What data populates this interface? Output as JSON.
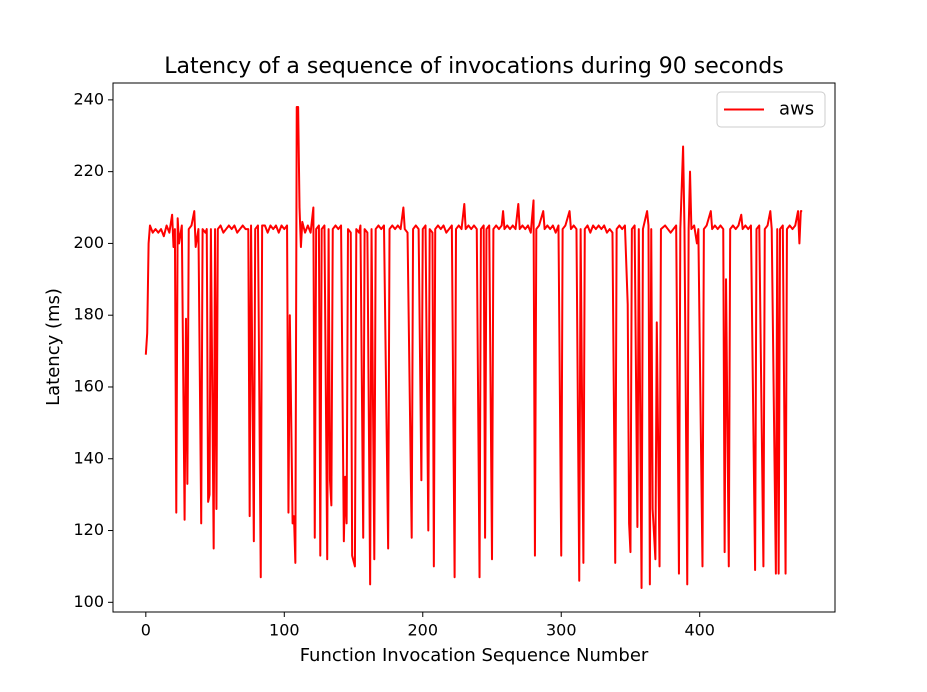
{
  "chart_data": {
    "type": "line",
    "title": "Latency of a sequence of invocations during 90 seconds",
    "xlabel": "Function Invocation Sequence Number",
    "ylabel": "Latency (ms)",
    "xlim": [
      -23.7,
      497.7
    ],
    "xticks": [
      0,
      100,
      200,
      300,
      400
    ],
    "ylim": [
      97.3,
      244.7
    ],
    "yticks": [
      100,
      120,
      140,
      160,
      180,
      200,
      220,
      240
    ],
    "grid": false,
    "legend": "upper right",
    "x": [
      0,
      1,
      2,
      3,
      5,
      7,
      9,
      11,
      13,
      15,
      17,
      19,
      20,
      21,
      22,
      23,
      24,
      26,
      28,
      29,
      30,
      31,
      33,
      35,
      36,
      38,
      40,
      41,
      43,
      44,
      45,
      46,
      47,
      49,
      50,
      51,
      52,
      54,
      56,
      58,
      60,
      62,
      64,
      66,
      68,
      70,
      72,
      74,
      75,
      76,
      78,
      79,
      81,
      83,
      84,
      86,
      88,
      90,
      92,
      94,
      96,
      98,
      100,
      102,
      103,
      104,
      106,
      107,
      108,
      109,
      110,
      111,
      112,
      113,
      115,
      117,
      119,
      121,
      122,
      123,
      125,
      126,
      127,
      129,
      131,
      132,
      133,
      134,
      135,
      137,
      139,
      141,
      143,
      144,
      145,
      146,
      148,
      149,
      151,
      152,
      154,
      155,
      157,
      158,
      160,
      162,
      163,
      165,
      166,
      168,
      170,
      172,
      175,
      176,
      178,
      180,
      182,
      184,
      186,
      187,
      189,
      192,
      193,
      195,
      197,
      199,
      200,
      202,
      204,
      205,
      207,
      208,
      209,
      211,
      213,
      215,
      217,
      219,
      221,
      223,
      224,
      226,
      228,
      230,
      231,
      233,
      235,
      237,
      239,
      241,
      242,
      244,
      245,
      246,
      248,
      250,
      251,
      253,
      255,
      257,
      258,
      259,
      261,
      263,
      265,
      267,
      269,
      270,
      272,
      274,
      276,
      278,
      280,
      281,
      282,
      284,
      287,
      288,
      290,
      292,
      294,
      296,
      298,
      300,
      301,
      303,
      306,
      307,
      309,
      311,
      313,
      314,
      316,
      317,
      319,
      321,
      323,
      325,
      327,
      329,
      331,
      333,
      335,
      337,
      339,
      340,
      342,
      344,
      346,
      348,
      349,
      350,
      351,
      353,
      355,
      356,
      358,
      359,
      362,
      363,
      364,
      365,
      366,
      368,
      369,
      371,
      372,
      375,
      377,
      379,
      381,
      383,
      385,
      386,
      388,
      389,
      391,
      392,
      393,
      394,
      396,
      398,
      399,
      402,
      403,
      405,
      408,
      409,
      411,
      413,
      415,
      417,
      418,
      419,
      421,
      422,
      424,
      426,
      428,
      430,
      431,
      433,
      435,
      437,
      440,
      441,
      443,
      446,
      447,
      449,
      451,
      452,
      455,
      456,
      457,
      458,
      460,
      462,
      463,
      465,
      467,
      469,
      471,
      472,
      473,
      474
    ],
    "series": [
      {
        "name": "aws",
        "color": "#ff0000",
        "values": [
          169,
          175,
          200,
          205,
          203,
          204,
          203,
          204,
          202,
          205,
          203,
          208,
          199,
          204,
          125,
          207,
          200,
          205,
          123,
          179,
          133,
          204,
          205,
          209,
          199,
          204,
          122,
          204,
          203,
          204,
          128,
          130,
          204,
          115,
          204,
          126,
          204,
          205,
          203,
          204,
          205,
          204,
          205,
          203,
          204,
          205,
          204,
          204,
          124,
          205,
          117,
          204,
          205,
          107,
          205,
          205,
          203,
          205,
          204,
          205,
          203,
          205,
          204,
          205,
          125,
          180,
          122,
          124,
          111,
          238,
          238,
          210,
          199,
          206,
          203,
          205,
          203,
          210,
          118,
          204,
          205,
          113,
          204,
          205,
          112,
          204,
          134,
          127,
          204,
          205,
          204,
          205,
          117,
          135,
          122,
          204,
          203,
          113,
          110,
          204,
          203,
          205,
          118,
          204,
          203,
          105,
          204,
          112,
          204,
          205,
          204,
          205,
          115,
          204,
          205,
          204,
          205,
          204,
          210,
          204,
          203,
          118,
          204,
          205,
          204,
          134,
          204,
          205,
          120,
          204,
          203,
          110,
          204,
          205,
          204,
          205,
          203,
          204,
          205,
          107,
          204,
          205,
          204,
          211,
          204,
          205,
          204,
          205,
          204,
          107,
          204,
          205,
          118,
          204,
          205,
          112,
          204,
          205,
          204,
          205,
          209,
          204,
          205,
          204,
          205,
          204,
          211,
          204,
          205,
          204,
          205,
          203,
          212,
          113,
          204,
          205,
          209,
          204,
          205,
          204,
          205,
          203,
          205,
          113,
          204,
          205,
          209,
          204,
          205,
          204,
          106,
          204,
          111,
          204,
          205,
          203,
          205,
          204,
          205,
          204,
          205,
          203,
          204,
          203,
          111,
          204,
          205,
          204,
          205,
          183,
          122,
          114,
          204,
          205,
          121,
          204,
          104,
          204,
          209,
          205,
          105,
          204,
          126,
          112,
          178,
          110,
          204,
          205,
          204,
          203,
          204,
          205,
          108,
          204,
          227,
          204,
          105,
          204,
          220,
          204,
          205,
          200,
          204,
          110,
          204,
          205,
          209,
          204,
          205,
          204,
          205,
          204,
          114,
          190,
          110,
          204,
          205,
          204,
          205,
          208,
          204,
          205,
          204,
          205,
          109,
          204,
          205,
          110,
          204,
          205,
          209,
          204,
          108,
          204,
          108,
          204,
          205,
          108,
          204,
          205,
          204,
          205,
          209,
          200,
          209,
          209
        ]
      }
    ]
  }
}
